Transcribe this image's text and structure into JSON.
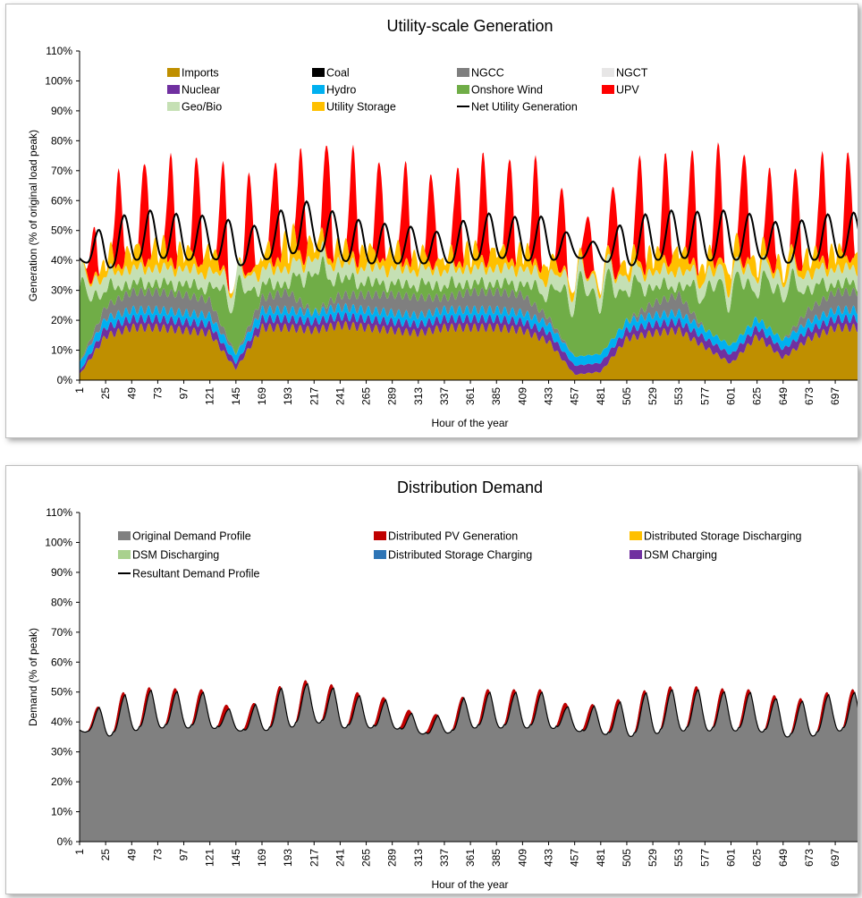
{
  "chart_data": [
    {
      "type": "area",
      "title": "Utility-scale Generation",
      "xlabel": "Hour of the year",
      "ylabel": "Generation (% of original load peak)",
      "ylim": [
        0,
        110
      ],
      "yticks": [
        "0%",
        "10%",
        "20%",
        "30%",
        "40%",
        "50%",
        "60%",
        "70%",
        "80%",
        "90%",
        "100%",
        "110%"
      ],
      "xlim": [
        1,
        720
      ],
      "xticks": [
        "1",
        "25",
        "49",
        "73",
        "97",
        "121",
        "145",
        "169",
        "193",
        "217",
        "241",
        "265",
        "289",
        "313",
        "337",
        "361",
        "385",
        "409",
        "433",
        "457",
        "481",
        "505",
        "529",
        "553",
        "577",
        "601",
        "625",
        "649",
        "673",
        "697"
      ],
      "stacked": true,
      "legend_position": "top",
      "legend": [
        {
          "name": "Imports",
          "color": "#bf8f00",
          "kind": "area"
        },
        {
          "name": "Coal",
          "color": "#000000",
          "kind": "area"
        },
        {
          "name": "NGCC",
          "color": "#7f7f7f",
          "kind": "area"
        },
        {
          "name": "NGCT",
          "color": "#e7e6e6",
          "kind": "area"
        },
        {
          "name": "Nuclear",
          "color": "#7030a0",
          "kind": "area"
        },
        {
          "name": "Hydro",
          "color": "#00b0f0",
          "kind": "area"
        },
        {
          "name": "Onshore Wind",
          "color": "#70ad47",
          "kind": "area"
        },
        {
          "name": "UPV",
          "color": "#ff0000",
          "kind": "area"
        },
        {
          "name": "Geo/Bio",
          "color": "#c5e0b4",
          "kind": "area"
        },
        {
          "name": "Utility Storage",
          "color": "#ffc000",
          "kind": "area"
        },
        {
          "name": "Net Utility Generation",
          "color": "#000000",
          "kind": "line"
        }
      ],
      "daily_profile_sampled_every_24h": {
        "hours": [
          1,
          25,
          49,
          73,
          97,
          121,
          145,
          169,
          193,
          217,
          241,
          265,
          289,
          313,
          337,
          361,
          385,
          409,
          433,
          457,
          481,
          505,
          529,
          553,
          577,
          601,
          625,
          649,
          673,
          697
        ],
        "series": [
          {
            "name": "Imports",
            "values": [
              2,
              16,
              19,
              19,
              18,
              17,
              4,
              19,
              19,
              18,
              20,
              19,
              18,
              17,
              19,
              19,
              19,
              18,
              14,
              2,
              3,
              15,
              17,
              18,
              12,
              6,
              16,
              8,
              15,
              19
            ]
          },
          {
            "name": "Nuclear",
            "values": [
              1,
              3,
              3,
              3,
              3,
              3,
              2,
              3,
              3,
              3,
              3,
              3,
              3,
              3,
              3,
              3,
              3,
              3,
              3,
              3,
              3,
              3,
              3,
              3,
              3,
              3,
              3,
              3,
              3,
              3
            ]
          },
          {
            "name": "Hydro",
            "values": [
              3,
              3,
              3,
              3,
              3,
              3,
              3,
              3,
              3,
              3,
              3,
              3,
              3,
              3,
              3,
              3,
              3,
              3,
              3,
              3,
              3,
              3,
              3,
              3,
              3,
              3,
              3,
              3,
              3,
              3
            ]
          },
          {
            "name": "NGCC",
            "values": [
              0,
              4,
              6,
              6,
              6,
              5,
              0,
              4,
              6,
              0,
              4,
              5,
              6,
              6,
              4,
              6,
              6,
              6,
              2,
              0,
              0,
              0,
              4,
              6,
              0,
              0,
              0,
              0,
              4,
              6
            ]
          },
          {
            "name": "Onshore Wind",
            "values": [
              30,
              8,
              4,
              4,
              5,
              6,
              28,
              6,
              4,
              20,
              8,
              6,
              5,
              6,
              6,
              4,
              4,
              5,
              12,
              30,
              30,
              16,
              8,
              4,
              18,
              28,
              16,
              25,
              10,
              4
            ]
          },
          {
            "name": "Geo/Bio",
            "values": [
              5,
              5,
              5,
              5,
              5,
              5,
              5,
              5,
              5,
              5,
              5,
              5,
              5,
              5,
              5,
              5,
              5,
              5,
              5,
              5,
              5,
              5,
              5,
              5,
              5,
              5,
              5,
              5,
              5,
              5
            ]
          },
          {
            "name": "Utility Storage",
            "values": [
              0,
              5,
              6,
              7,
              6,
              7,
              0,
              5,
              9,
              5,
              5,
              6,
              6,
              5,
              4,
              6,
              6,
              6,
              5,
              2,
              2,
              4,
              6,
              7,
              5,
              6,
              5,
              4,
              6,
              6
            ]
          },
          {
            "name": "UPV",
            "values": [
              2,
              30,
              34,
              35,
              35,
              36,
              34,
              33,
              35,
              36,
              38,
              33,
              34,
              32,
              30,
              35,
              36,
              33,
              36,
              20,
              22,
              36,
              35,
              36,
              38,
              40,
              36,
              28,
              34,
              36
            ]
          }
        ]
      },
      "net_utility_generation_daily": {
        "hours": [
          1,
          25,
          49,
          73,
          97,
          121,
          145,
          169,
          193,
          217,
          241,
          265,
          289,
          313,
          337,
          361,
          385,
          409,
          433,
          457,
          481,
          505,
          529,
          553,
          577,
          601,
          625,
          649,
          673,
          697
        ],
        "peak": [
          43,
          53,
          56,
          57,
          55,
          55,
          53,
          51,
          59,
          60,
          55,
          53,
          52,
          51,
          49,
          55,
          56,
          54,
          55,
          47,
          46,
          54,
          56,
          57,
          56,
          57,
          55,
          52,
          54,
          56
        ],
        "trough": [
          40,
          37,
          40,
          41,
          40,
          41,
          38,
          40,
          42,
          44,
          40,
          39,
          39,
          39,
          39,
          40,
          41,
          40,
          40,
          41,
          40,
          38,
          40,
          41,
          40,
          40,
          41,
          39,
          40,
          41
        ]
      }
    },
    {
      "type": "area",
      "title": "Distribution Demand",
      "xlabel": "Hour of the year",
      "ylabel": "Demand (% of peak)",
      "ylim": [
        0,
        110
      ],
      "yticks": [
        "0%",
        "10%",
        "20%",
        "30%",
        "40%",
        "50%",
        "60%",
        "70%",
        "80%",
        "90%",
        "100%",
        "110%"
      ],
      "xlim": [
        1,
        720
      ],
      "xticks": [
        "1",
        "25",
        "49",
        "73",
        "97",
        "121",
        "145",
        "169",
        "193",
        "217",
        "241",
        "265",
        "289",
        "313",
        "337",
        "361",
        "385",
        "409",
        "433",
        "457",
        "481",
        "505",
        "529",
        "553",
        "577",
        "601",
        "625",
        "649",
        "673",
        "697"
      ],
      "stacked": true,
      "legend_position": "top",
      "legend": [
        {
          "name": "Original Demand Profile",
          "color": "#808080",
          "kind": "area"
        },
        {
          "name": "Distributed PV Generation",
          "color": "#c00000",
          "kind": "area"
        },
        {
          "name": "Distributed Storage Discharging",
          "color": "#ffc000",
          "kind": "area"
        },
        {
          "name": "DSM Discharging",
          "color": "#a9d18e",
          "kind": "area"
        },
        {
          "name": "Distributed Storage Charging",
          "color": "#2e75b6",
          "kind": "area"
        },
        {
          "name": "DSM Charging",
          "color": "#7030a0",
          "kind": "area"
        },
        {
          "name": "Resultant Demand Profile",
          "color": "#000000",
          "kind": "line"
        }
      ],
      "original_demand_daily": {
        "hours": [
          1,
          25,
          49,
          73,
          97,
          121,
          145,
          169,
          193,
          217,
          241,
          265,
          289,
          313,
          337,
          361,
          385,
          409,
          433,
          457,
          481,
          505,
          529,
          553,
          577,
          601,
          625,
          649,
          673,
          697
        ],
        "peak": [
          39,
          48,
          51,
          52,
          51,
          51,
          43,
          48,
          54,
          54,
          52,
          49,
          48,
          42,
          43,
          51,
          51,
          51,
          51,
          44,
          47,
          48,
          52,
          52,
          52,
          51,
          51,
          48,
          48,
          51
        ],
        "trough": [
          37,
          35,
          37,
          38,
          38,
          38,
          37,
          37,
          38,
          40,
          38,
          38,
          38,
          36,
          36,
          38,
          38,
          38,
          38,
          37,
          36,
          35,
          36,
          37,
          37,
          37,
          37,
          35,
          35,
          37
        ]
      },
      "distributed_pv_midday_share": [
        0,
        4,
        4,
        4,
        4,
        4,
        3,
        4,
        4,
        4,
        4,
        4,
        4,
        3,
        3,
        4,
        4,
        4,
        4,
        3,
        4,
        4,
        4,
        4,
        4,
        4,
        4,
        3,
        4,
        4
      ]
    }
  ]
}
